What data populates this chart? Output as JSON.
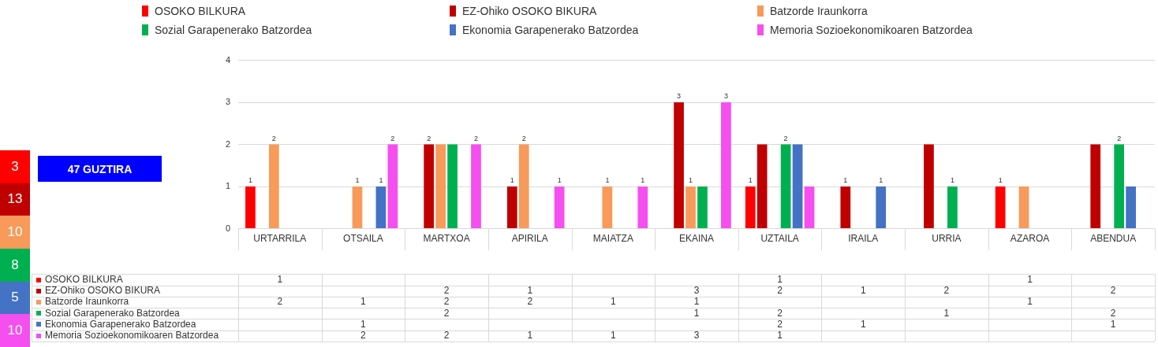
{
  "chart_data": [
    {
      "type": "bar",
      "categories": [
        "URTARRILA",
        "OTSAILA",
        "MARTXOA",
        "APIRILA",
        "MAIATZA",
        "EKAINA",
        "UZTAILA",
        "IRAILA",
        "URRIA",
        "AZAROA",
        "ABENDUA"
      ],
      "series": [
        {
          "name": "OSOKO BILKURA",
          "color": "#ff0000",
          "values": [
            1,
            null,
            null,
            null,
            null,
            null,
            1,
            null,
            null,
            1,
            null
          ],
          "value_labels": [
            "1",
            null,
            null,
            null,
            null,
            null,
            "1",
            null,
            null,
            "1",
            null
          ]
        },
        {
          "name": "EZ-Ohiko OSOKO BIKURA",
          "color": "#c00000",
          "values": [
            null,
            null,
            2,
            1,
            null,
            3,
            2,
            1,
            2,
            null,
            2
          ],
          "value_labels": [
            null,
            null,
            "2",
            "1",
            null,
            "3",
            null,
            "1",
            null,
            null,
            null
          ]
        },
        {
          "name": "Batzorde Iraunkorra",
          "color": "#f79a5a",
          "values": [
            2,
            1,
            2,
            2,
            1,
            1,
            null,
            null,
            null,
            1,
            null
          ],
          "value_labels": [
            "2",
            "1",
            null,
            "2",
            "1",
            "1",
            null,
            null,
            null,
            null,
            null
          ]
        },
        {
          "name": "Sozial Garapenerako Batzordea",
          "color": "#00b050",
          "values": [
            null,
            null,
            2,
            null,
            null,
            1,
            2,
            null,
            1,
            null,
            2
          ],
          "value_labels": [
            null,
            null,
            null,
            null,
            null,
            null,
            "2",
            null,
            "1",
            null,
            "2"
          ]
        },
        {
          "name": "Ekonomia Garapenerako Batzordea",
          "color": "#4472c4",
          "values": [
            null,
            1,
            null,
            null,
            null,
            null,
            2,
            1,
            null,
            null,
            1
          ],
          "value_labels": [
            null,
            "1",
            null,
            null,
            null,
            null,
            null,
            "1",
            null,
            null,
            null
          ]
        },
        {
          "name": "Memoria Sozioekonomikoaren Batzordea",
          "color": "#f54ff0",
          "values": [
            null,
            2,
            2,
            1,
            1,
            3,
            1,
            null,
            null,
            null,
            null
          ],
          "value_labels": [
            null,
            "2",
            "2",
            "1",
            "1",
            "3",
            null,
            null,
            null,
            null,
            null
          ]
        }
      ],
      "ylim": [
        0,
        4
      ],
      "yticks": [
        0,
        1,
        2,
        3,
        4
      ],
      "grid": "y",
      "legend": "top",
      "annotations": [
        "3",
        "13",
        "10",
        "8",
        "5",
        "10",
        "47 GUZTIRA"
      ]
    },
    {
      "type": "heatmap",
      "categories": [
        null,
        null,
        null,
        null,
        null,
        null,
        null,
        null,
        null,
        null,
        null
      ],
      "y_categories": [
        "OSOKO BILKURA",
        "EZ-Ohiko OSOKO BIKURA",
        "Batzorde Iraunkorra",
        "Sozial Garapenerako Batzordea",
        "Ekonomia Garapenerako Batzordea",
        "Memoria Sozioekonomikoaren Batzordea"
      ],
      "cells": [
        [
          1,
          null,
          null,
          null,
          null,
          null,
          1,
          null,
          null,
          1,
          null
        ],
        [
          null,
          null,
          2,
          1,
          null,
          3,
          2,
          1,
          2,
          null,
          2
        ],
        [
          2,
          1,
          2,
          2,
          1,
          1,
          null,
          null,
          null,
          1,
          null
        ],
        [
          null,
          null,
          2,
          null,
          null,
          1,
          2,
          null,
          1,
          null,
          2
        ],
        [
          null,
          1,
          null,
          null,
          null,
          null,
          2,
          1,
          null,
          null,
          1
        ],
        [
          null,
          2,
          2,
          1,
          1,
          3,
          1,
          null,
          null,
          null,
          null
        ]
      ],
      "data_labels": true
    }
  ]
}
